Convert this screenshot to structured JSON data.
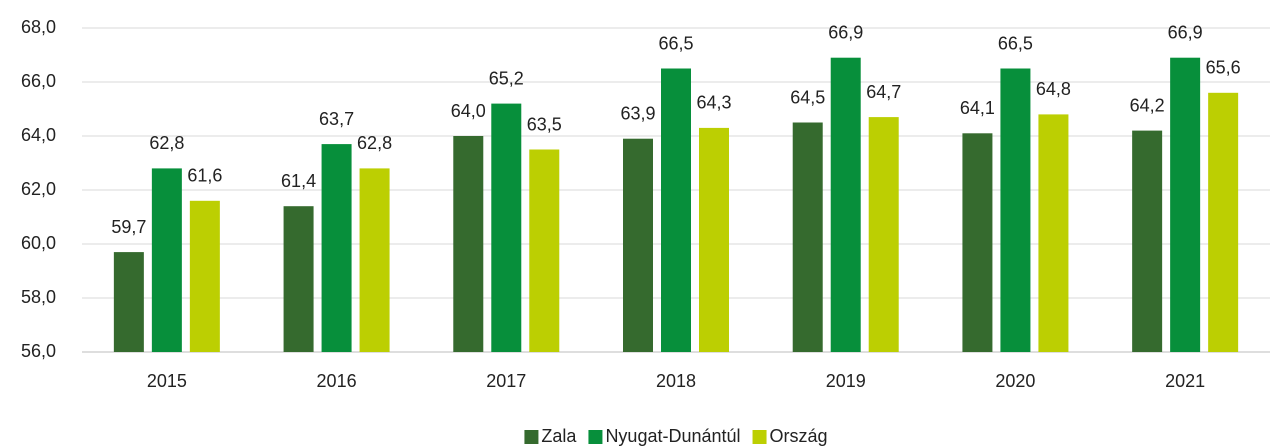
{
  "chart_data": {
    "type": "bar",
    "categories": [
      "2015",
      "2016",
      "2017",
      "2018",
      "2019",
      "2020",
      "2021"
    ],
    "series": [
      {
        "name": "Zala",
        "color": "#356a2e",
        "values": [
          59.7,
          61.4,
          64.0,
          63.9,
          64.5,
          64.1,
          64.2
        ],
        "value_labels": [
          "59,7",
          "61,4",
          "64,0",
          "63,9",
          "64,5",
          "64,1",
          "64,2"
        ]
      },
      {
        "name": "Nyugat-Dunántúl",
        "color": "#078f3b",
        "values": [
          62.8,
          63.7,
          65.2,
          66.5,
          66.9,
          66.5,
          66.9
        ],
        "value_labels": [
          "62,8",
          "63,7",
          "65,2",
          "66,5",
          "66,9",
          "66,5",
          "66,9"
        ]
      },
      {
        "name": "Ország",
        "color": "#bccf02",
        "values": [
          61.6,
          62.8,
          63.5,
          64.3,
          64.7,
          64.8,
          65.6
        ],
        "value_labels": [
          "61,6",
          "62,8",
          "63,5",
          "64,3",
          "64,7",
          "64,8",
          "65,6"
        ]
      }
    ],
    "ylim": [
      56,
      68
    ],
    "yticks": [
      {
        "value": 56,
        "label": "56,0"
      },
      {
        "value": 58,
        "label": "58,0"
      },
      {
        "value": 60,
        "label": "60,0"
      },
      {
        "value": 62,
        "label": "62,0"
      },
      {
        "value": 64,
        "label": "64,0"
      },
      {
        "value": 66,
        "label": "66,0"
      },
      {
        "value": 68,
        "label": "68,0"
      }
    ],
    "grid": true,
    "legend": "bottom"
  }
}
